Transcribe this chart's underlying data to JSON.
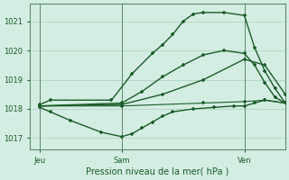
{
  "title": "Pression niveau de la mer( hPa )",
  "bg_color": "#d4ede2",
  "grid_color": "#aacfbc",
  "line_color": "#1a5c28",
  "xlim": [
    0,
    50
  ],
  "ylim": [
    1016.6,
    1021.6
  ],
  "yticks": [
    1017,
    1018,
    1019,
    1020,
    1021
  ],
  "xtick_positions": [
    2,
    18,
    42
  ],
  "xtick_labels": [
    "Jeu",
    "Sam",
    "Ven"
  ],
  "vlines": [
    2,
    18,
    42
  ],
  "lines": [
    {
      "x": [
        2,
        4,
        16,
        20,
        24,
        26,
        28,
        30,
        32,
        34,
        38,
        42,
        44,
        46,
        48,
        50
      ],
      "y": [
        1018.15,
        1018.3,
        1018.3,
        1019.2,
        1019.9,
        1020.2,
        1020.55,
        1021.0,
        1021.25,
        1021.3,
        1021.3,
        1021.2,
        1020.1,
        1019.3,
        1018.7,
        1018.2
      ]
    },
    {
      "x": [
        2,
        18,
        22,
        26,
        30,
        34,
        38,
        42,
        44,
        46,
        48,
        50
      ],
      "y": [
        1018.1,
        1018.2,
        1018.6,
        1019.1,
        1019.5,
        1019.85,
        1020.0,
        1019.9,
        1019.5,
        1018.9,
        1018.4,
        1018.2
      ]
    },
    {
      "x": [
        2,
        18,
        26,
        34,
        42,
        46,
        50
      ],
      "y": [
        1018.1,
        1018.15,
        1018.5,
        1019.0,
        1019.7,
        1019.5,
        1018.5
      ]
    },
    {
      "x": [
        2,
        18,
        34,
        42,
        46,
        50
      ],
      "y": [
        1018.1,
        1018.1,
        1018.2,
        1018.25,
        1018.3,
        1018.2
      ]
    },
    {
      "x": [
        2,
        4,
        8,
        14,
        18,
        20,
        22,
        24,
        26,
        28,
        32,
        36,
        40,
        42,
        44,
        46,
        50
      ],
      "y": [
        1018.05,
        1017.9,
        1017.6,
        1017.2,
        1017.05,
        1017.15,
        1017.35,
        1017.55,
        1017.75,
        1017.9,
        1018.0,
        1018.05,
        1018.1,
        1018.1,
        1018.2,
        1018.3,
        1018.2
      ]
    }
  ]
}
